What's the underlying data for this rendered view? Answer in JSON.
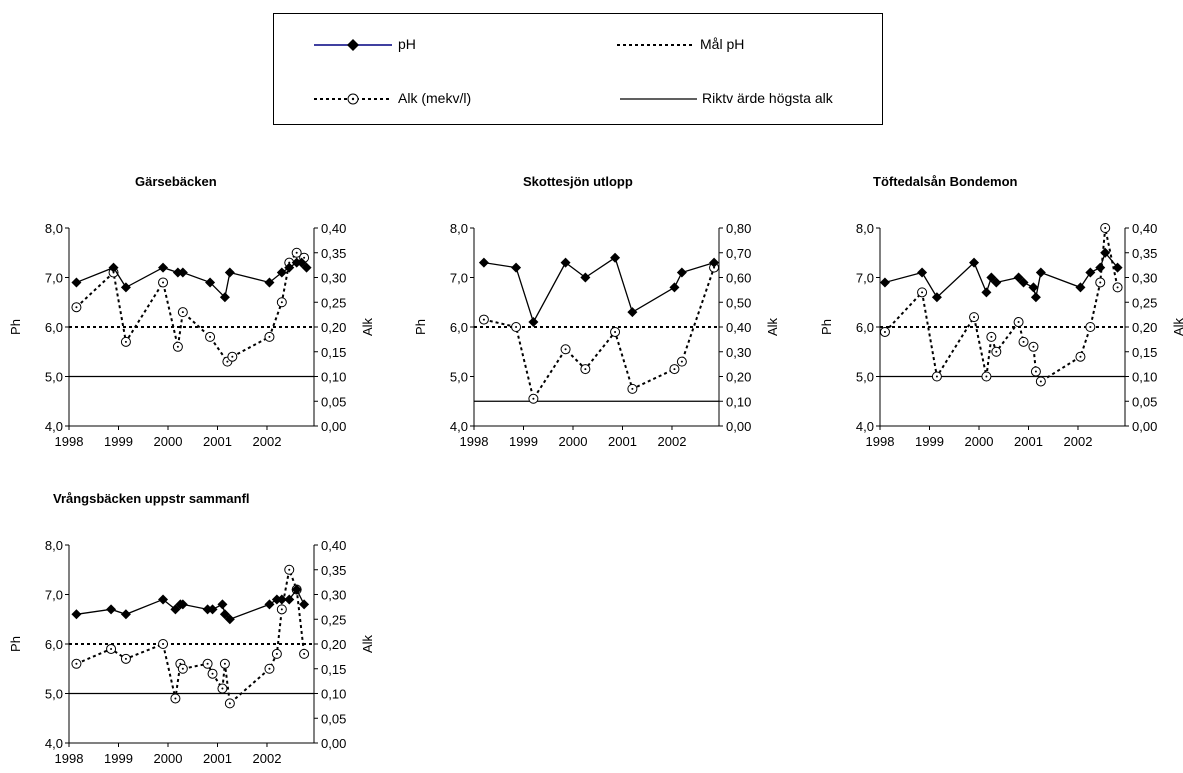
{
  "legend": {
    "ph": "pH",
    "mal_ph": "Mål pH",
    "alk": "Alk (mekv/l)",
    "riktvarde": "Riktv ärde högsta alk"
  },
  "chart_data": [
    {
      "type": "line",
      "title": "Gärsebäcken",
      "ylabel": "Ph",
      "y2label": "Alk",
      "ylim": [
        4.0,
        8.0
      ],
      "y2lim": [
        0.0,
        0.4
      ],
      "xlim": [
        1998.0,
        2002.95
      ],
      "xticks": [
        "1998",
        "1999",
        "2000",
        "2001",
        "2002"
      ],
      "yticks": [
        "4,0",
        "5,0",
        "6,0",
        "7,0",
        "8,0"
      ],
      "y2ticks": [
        "0,00",
        "0,05",
        "0,10",
        "0,15",
        "0,20",
        "0,25",
        "0,30",
        "0,35",
        "0,40"
      ],
      "mal_ph": 6.0,
      "riktvarde_alk": 0.1,
      "ph": {
        "x": [
          1998.15,
          1998.9,
          1999.15,
          1999.9,
          2000.2,
          2000.3,
          2000.85,
          2001.15,
          2001.25,
          2002.05,
          2002.3,
          2002.45,
          2002.6,
          2002.7,
          2002.8
        ],
        "y": [
          6.9,
          7.2,
          6.8,
          7.2,
          7.1,
          7.1,
          6.9,
          6.6,
          7.1,
          6.9,
          7.1,
          7.2,
          7.3,
          7.3,
          7.2
        ]
      },
      "alk": {
        "x": [
          1998.15,
          1998.9,
          1999.15,
          1999.9,
          2000.2,
          2000.3,
          2000.85,
          2001.2,
          2001.3,
          2002.05,
          2002.3,
          2002.45,
          2002.6,
          2002.75
        ],
        "y": [
          0.24,
          0.31,
          0.17,
          0.29,
          0.16,
          0.23,
          0.18,
          0.13,
          0.14,
          0.18,
          0.25,
          0.33,
          0.35,
          0.34
        ]
      }
    },
    {
      "type": "line",
      "title": "Skottesjön utlopp",
      "ylabel": "Ph",
      "y2label": "Alk",
      "ylim": [
        4.0,
        8.0
      ],
      "y2lim": [
        0.0,
        0.8
      ],
      "xlim": [
        1998.0,
        2002.95
      ],
      "xticks": [
        "1998",
        "1999",
        "2000",
        "2001",
        "2002"
      ],
      "yticks": [
        "4,0",
        "5,0",
        "6,0",
        "7,0",
        "8,0"
      ],
      "y2ticks": [
        "0,00",
        "0,10",
        "0,20",
        "0,30",
        "0,40",
        "0,50",
        "0,60",
        "0,70",
        "0,80"
      ],
      "mal_ph": 6.0,
      "riktvarde_alk": 0.1,
      "ph": {
        "x": [
          1998.2,
          1998.85,
          1999.2,
          1999.85,
          2000.25,
          2000.85,
          2001.2,
          2002.05,
          2002.2,
          2002.85
        ],
        "y": [
          7.3,
          7.2,
          6.1,
          7.3,
          7.0,
          7.4,
          6.3,
          6.8,
          7.1,
          7.3
        ]
      },
      "alk": {
        "x": [
          1998.2,
          1998.85,
          1999.2,
          1999.85,
          2000.25,
          2000.85,
          2001.2,
          2002.05,
          2002.2,
          2002.85
        ],
        "y": [
          0.43,
          0.4,
          0.11,
          0.31,
          0.23,
          0.38,
          0.15,
          0.23,
          0.26,
          0.64
        ]
      }
    },
    {
      "type": "line",
      "title": "Töftedalsån Bondemon",
      "ylabel": "Ph",
      "y2label": "Alk",
      "ylim": [
        4.0,
        8.0
      ],
      "y2lim": [
        0.0,
        0.4
      ],
      "xlim": [
        1998.0,
        2002.95
      ],
      "xticks": [
        "1998",
        "1999",
        "2000",
        "2001",
        "2002"
      ],
      "yticks": [
        "4,0",
        "5,0",
        "6,0",
        "7,0",
        "8,0"
      ],
      "y2ticks": [
        "0,00",
        "0,05",
        "0,10",
        "0,15",
        "0,20",
        "0,25",
        "0,30",
        "0,35",
        "0,40"
      ],
      "mal_ph": 6.0,
      "riktvarde_alk": 0.1,
      "ph": {
        "x": [
          1998.1,
          1998.85,
          1999.15,
          1999.9,
          2000.15,
          2000.25,
          2000.35,
          2000.8,
          2000.9,
          2001.1,
          2001.15,
          2001.25,
          2002.05,
          2002.25,
          2002.45,
          2002.55,
          2002.8
        ],
        "y": [
          6.9,
          7.1,
          6.6,
          7.3,
          6.7,
          7.0,
          6.9,
          7.0,
          6.9,
          6.8,
          6.6,
          7.1,
          6.8,
          7.1,
          7.2,
          7.5,
          7.2
        ]
      },
      "alk": {
        "x": [
          1998.1,
          1998.85,
          1999.15,
          1999.9,
          2000.15,
          2000.25,
          2000.35,
          2000.8,
          2000.9,
          2001.1,
          2001.15,
          2001.25,
          2002.05,
          2002.25,
          2002.45,
          2002.55,
          2002.8
        ],
        "y": [
          0.19,
          0.27,
          0.1,
          0.22,
          0.1,
          0.18,
          0.15,
          0.21,
          0.17,
          0.16,
          0.11,
          0.09,
          0.14,
          0.2,
          0.29,
          0.4,
          0.28
        ]
      }
    },
    {
      "type": "line",
      "title": "Vrångsbäcken uppstr sammanfl",
      "ylabel": "Ph",
      "y2label": "Alk",
      "ylim": [
        4.0,
        8.0
      ],
      "y2lim": [
        0.0,
        0.4
      ],
      "xlim": [
        1998.0,
        2002.95
      ],
      "xticks": [
        "1998",
        "1999",
        "2000",
        "2001",
        "2002"
      ],
      "yticks": [
        "4,0",
        "5,0",
        "6,0",
        "7,0",
        "8,0"
      ],
      "y2ticks": [
        "0,00",
        "0,05",
        "0,10",
        "0,15",
        "0,20",
        "0,25",
        "0,30",
        "0,35",
        "0,40"
      ],
      "mal_ph": 6.0,
      "riktvarde_alk": 0.1,
      "ph": {
        "x": [
          1998.15,
          1998.85,
          1999.15,
          1999.9,
          2000.15,
          2000.25,
          2000.3,
          2000.8,
          2000.9,
          2001.1,
          2001.15,
          2001.25,
          2002.05,
          2002.2,
          2002.3,
          2002.45,
          2002.6,
          2002.75
        ],
        "y": [
          6.6,
          6.7,
          6.6,
          6.9,
          6.7,
          6.8,
          6.8,
          6.7,
          6.7,
          6.8,
          6.6,
          6.5,
          6.8,
          6.9,
          6.9,
          6.9,
          7.1,
          6.8
        ]
      },
      "alk": {
        "x": [
          1998.15,
          1998.85,
          1999.15,
          1999.9,
          2000.15,
          2000.25,
          2000.3,
          2000.8,
          2000.9,
          2001.1,
          2001.15,
          2001.25,
          2002.05,
          2002.2,
          2002.3,
          2002.45,
          2002.6,
          2002.75
        ],
        "y": [
          0.16,
          0.19,
          0.17,
          0.2,
          0.09,
          0.16,
          0.15,
          0.16,
          0.14,
          0.11,
          0.16,
          0.08,
          0.15,
          0.18,
          0.27,
          0.35,
          0.31,
          0.18
        ]
      }
    }
  ]
}
